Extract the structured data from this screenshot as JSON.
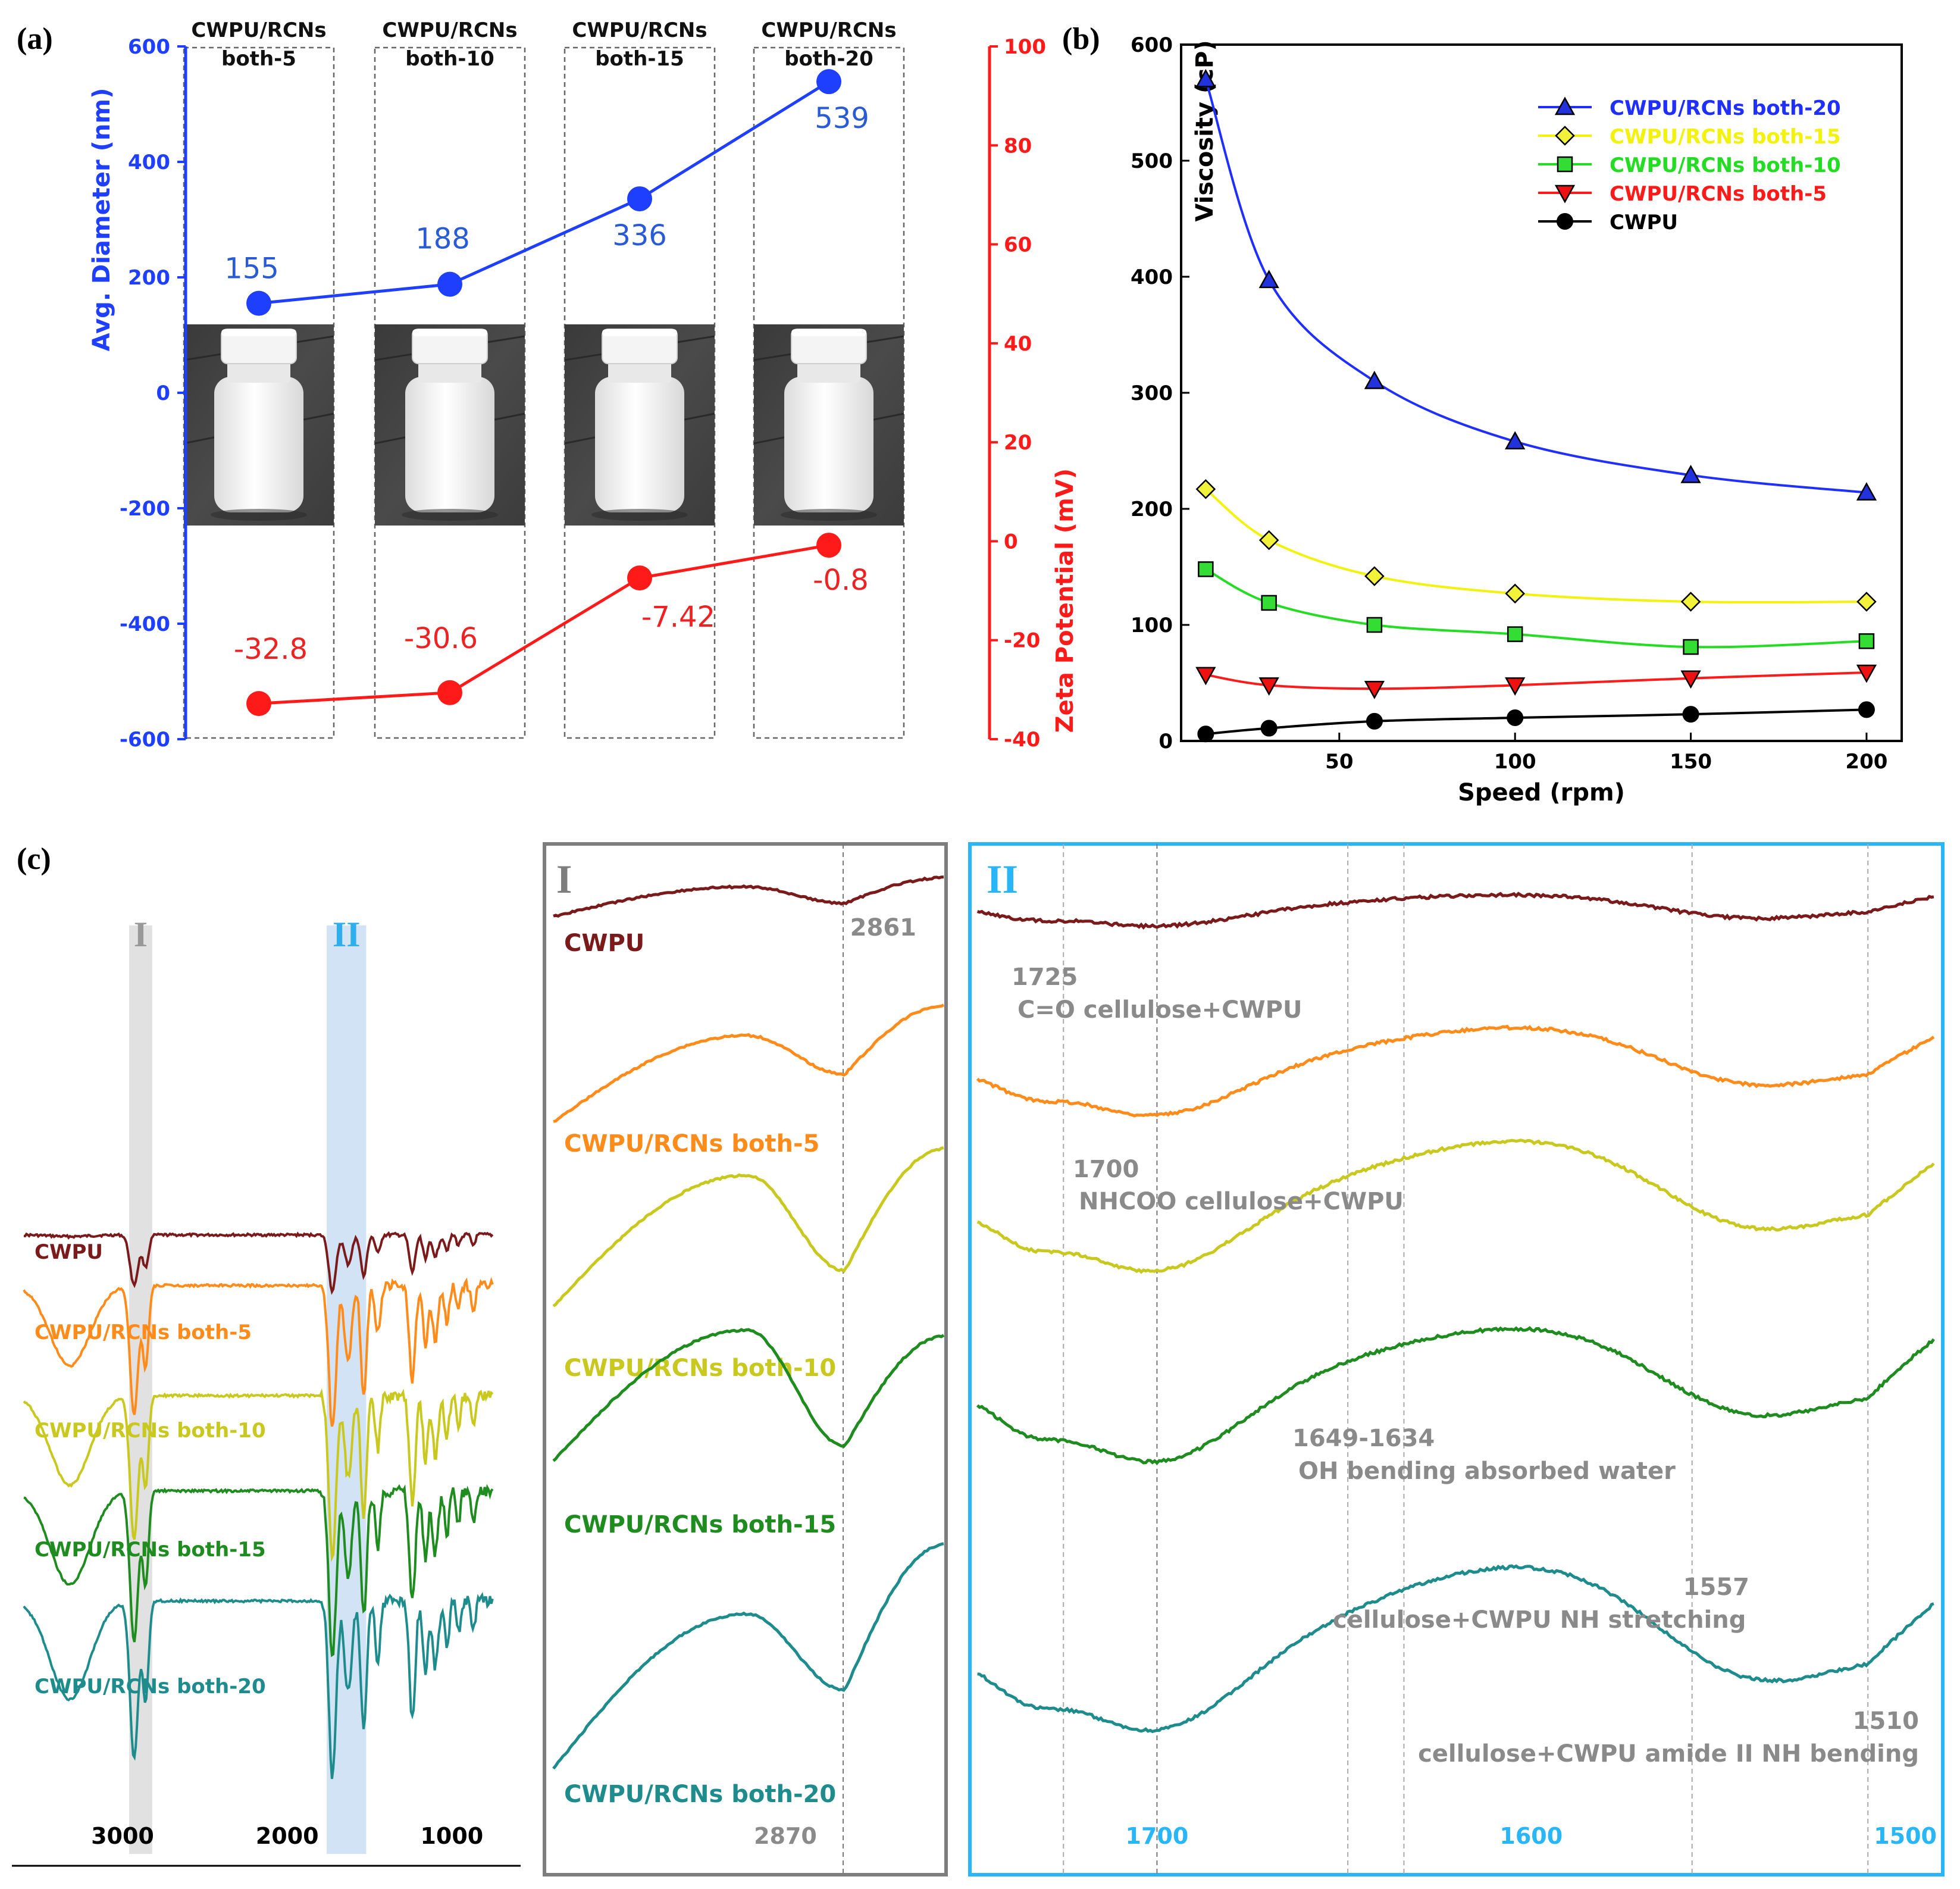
{
  "panel_labels": {
    "a": "(a)",
    "b": "(b)",
    "c": "(c)"
  },
  "colors": {
    "diameter_blue": "#1f3fff",
    "zeta_red": "#ff1a1a",
    "fill_gray": "#8a8a8a"
  },
  "chart_data": [
    {
      "id": "a",
      "type": "line",
      "categories": [
        "CWPU/RCNs\nboth-5",
        "CWPU/RCNs\nboth-10",
        "CWPU/RCNs\nboth-15",
        "CWPU/RCNs\nboth-20"
      ],
      "series": [
        {
          "name": "",
          "axis": "left",
          "values": [
            155,
            188,
            336,
            539
          ],
          "color": "#1f3fff",
          "labels": [
            "155",
            "188",
            "336",
            "539"
          ]
        },
        {
          "name": "",
          "axis": "right",
          "values": [
            -32.8,
            -30.6,
            -7.42,
            -0.8
          ],
          "color": "#ff1a1a",
          "labels": [
            "-32.8",
            "-30.6",
            "-7.42",
            "-0.8"
          ]
        }
      ],
      "ylabel_left": "Avg. Diameter (nm)",
      "ylim_left": [
        -600,
        600
      ],
      "yticks_left": [
        "-600",
        "-400",
        "-200",
        "0",
        "200",
        "400",
        "600"
      ],
      "ylabel_right": "Zeta Potential (mV)",
      "ylim_right": [
        -40,
        100
      ],
      "yticks_right": [
        "-40",
        "-20",
        "0",
        "20",
        "40",
        "60",
        "80",
        "100"
      ],
      "grid": false
    },
    {
      "id": "b",
      "type": "line",
      "x": [
        12,
        30,
        60,
        100,
        150,
        200
      ],
      "series": [
        {
          "name": "CWPU/RCNs both-20",
          "marker": "triangle-up",
          "color": "#1f2fff",
          "marker_fill": "#2233dd",
          "values": [
            570,
            397,
            310,
            258,
            229,
            214
          ]
        },
        {
          "name": "CWPU/RCNs both-15",
          "marker": "diamond",
          "color": "#f2f20a",
          "marker_fill": "#f2f23a",
          "values": [
            217,
            173,
            142,
            127,
            120,
            120
          ]
        },
        {
          "name": "CWPU/RCNs both-10",
          "marker": "square",
          "color": "#22dd22",
          "marker_fill": "#33dd33",
          "values": [
            148,
            119,
            100,
            92,
            81,
            86
          ]
        },
        {
          "name": "CWPU/RCNs both-5",
          "marker": "triangle-down",
          "color": "#ff1a1a",
          "marker_fill": "#ee1111",
          "values": [
            57,
            48,
            45,
            48,
            54,
            59
          ]
        },
        {
          "name": "CWPU",
          "marker": "circle",
          "color": "#000000",
          "marker_fill": "#000000",
          "values": [
            6,
            11,
            17,
            20,
            23,
            27
          ]
        }
      ],
      "xlabel": "Speed (rpm)",
      "ylabel": "Viscosity (cP)",
      "xlim": [
        5,
        210
      ],
      "ylim": [
        0,
        600
      ],
      "xticks": [
        "50",
        "100",
        "150",
        "200"
      ],
      "yticks": [
        "0",
        "100",
        "200",
        "300",
        "400",
        "500",
        "600"
      ],
      "legend": "top-right",
      "grid": false
    },
    {
      "id": "c",
      "type": "line",
      "xlabel": "",
      "xticks": [
        "3000",
        "2000",
        "1000"
      ],
      "xlim": [
        3600,
        600
      ],
      "series": [
        {
          "name": "CWPU",
          "color": "#7a1a1a"
        },
        {
          "name": "CWPU/RCNs both-5",
          "color": "#ff8c1a"
        },
        {
          "name": "CWPU/RCNs both-10",
          "color": "#c8c81e"
        },
        {
          "name": "CWPU/RCNs both-15",
          "color": "#1e8c1e"
        },
        {
          "name": "CWPU/RCNs both-20",
          "color": "#1e8c8c"
        }
      ],
      "regions": [
        {
          "label": "I",
          "range": [
            2960,
            2820
          ],
          "color": "#d9d9d9"
        },
        {
          "label": "II",
          "range": [
            1760,
            1520
          ],
          "color": "#c7dcf2"
        }
      ]
    },
    {
      "id": "c-I",
      "type": "line",
      "frame_label": "I",
      "xticks": [
        "2870"
      ],
      "series": [
        {
          "name": "CWPU",
          "color": "#7a1a1a"
        },
        {
          "name": "CWPU/RCNs both-5",
          "color": "#ff8c1a"
        },
        {
          "name": "CWPU/RCNs both-10",
          "color": "#c8c81e"
        },
        {
          "name": "CWPU/RCNs both-15",
          "color": "#1e8c1e"
        },
        {
          "name": "CWPU/RCNs both-20",
          "color": "#1e8c8c"
        }
      ],
      "annotations": [
        "2861"
      ]
    },
    {
      "id": "c-II",
      "type": "line",
      "frame_label": "II",
      "xticks": [
        "1700",
        "1600",
        "1500"
      ],
      "xlim": [
        1750,
        1490
      ],
      "annotations": [
        {
          "value": "1725",
          "text": "C=O cellulose+CWPU"
        },
        {
          "value": "1700",
          "text": "NHCOO cellulose+CWPU"
        },
        {
          "value": "1649-1634",
          "text": "OH bending absorbed water"
        },
        {
          "value": "1557",
          "text": "cellulose+CWPU NH stretching"
        },
        {
          "value": "1510",
          "text": "cellulose+CWPU amide II NH bending"
        }
      ]
    }
  ]
}
